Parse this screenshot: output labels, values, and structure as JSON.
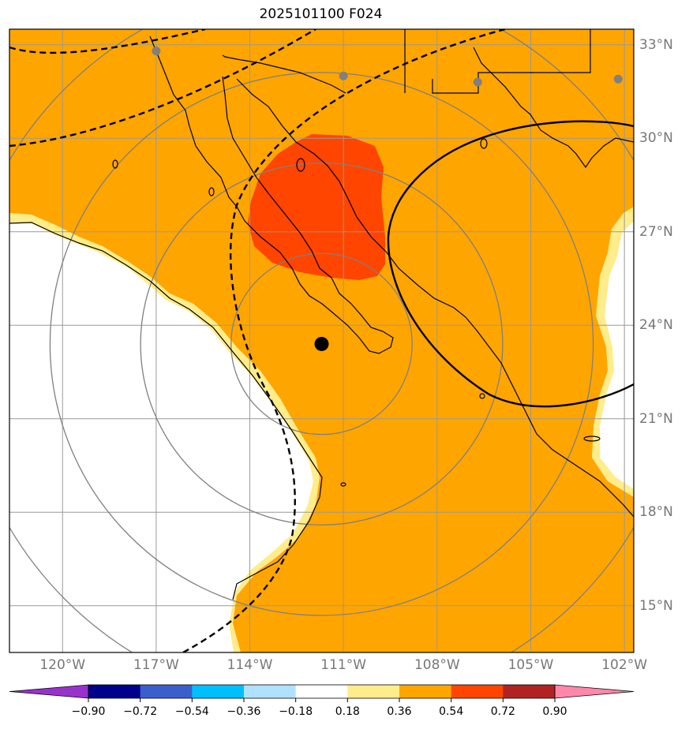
{
  "title": "2025101100 F024",
  "map": {
    "lon_range": [
      -121.7,
      -101.7
    ],
    "lat_range": [
      13.5,
      33.5
    ],
    "lon_ticks": [
      {
        "lon": -120,
        "label": "120°W"
      },
      {
        "lon": -117,
        "label": "117°W"
      },
      {
        "lon": -114,
        "label": "114°W"
      },
      {
        "lon": -111,
        "label": "111°W"
      },
      {
        "lon": -108,
        "label": "108°W"
      },
      {
        "lon": -105,
        "label": "105°W"
      },
      {
        "lon": -102,
        "label": "102°W"
      }
    ],
    "lat_ticks": [
      {
        "lat": 33,
        "label": "33°N"
      },
      {
        "lat": 30,
        "label": "30°N"
      },
      {
        "lat": 27,
        "label": "27°N"
      },
      {
        "lat": 24,
        "label": "24°N"
      },
      {
        "lat": 21,
        "label": "21°N"
      },
      {
        "lat": 18,
        "label": "18°N"
      },
      {
        "lat": 15,
        "label": "15°N"
      }
    ],
    "storm_center": {
      "lon": -111.7,
      "lat": 23.4
    },
    "range_rings_deg": [
      2.9,
      5.8,
      8.7,
      11.6
    ],
    "stations": [
      {
        "lon": -117.0,
        "lat": 32.8
      },
      {
        "lon": -111.0,
        "lat": 32.0
      },
      {
        "lon": -106.7,
        "lat": 31.8
      },
      {
        "lon": -102.2,
        "lat": 31.9
      }
    ],
    "colors": {
      "shade_036_054": "#ffa500",
      "shade_054_072": "#ff4500",
      "shade_018_036": "#ffec8b",
      "grid": "#999999",
      "ring": "#808080"
    }
  },
  "colorbar": {
    "colors": [
      "#9932cc",
      "#00008b",
      "#3a5fcd",
      "#00bfff",
      "#b0e2ff",
      "#ffffff",
      "#ffec8b",
      "#ffa500",
      "#ff4500",
      "#b22222",
      "#ff88aa"
    ],
    "ticks": [
      "−0.90",
      "−0.72",
      "−0.54",
      "−0.36",
      "−0.18",
      "0.18",
      "0.36",
      "0.54",
      "0.72",
      "0.90"
    ]
  }
}
